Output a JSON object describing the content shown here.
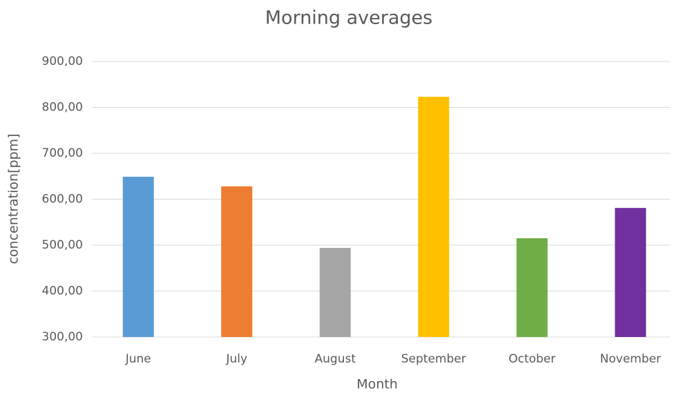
{
  "chart_data": {
    "type": "bar",
    "title": "Morning averages",
    "x_label": "Month",
    "y_label": "concentration[ppm]",
    "categories": [
      "June",
      "July",
      "August",
      "September",
      "October",
      "November"
    ],
    "values": [
      649,
      628,
      494,
      823,
      515,
      581
    ],
    "colors": [
      "#5b9bd5",
      "#ed7d31",
      "#a5a5a5",
      "#ffc000",
      "#70ad47",
      "#7030a0"
    ],
    "ylim": [
      300,
      900
    ],
    "yticks": [
      {
        "value": 300,
        "label": "300,00"
      },
      {
        "value": 400,
        "label": "400,00"
      },
      {
        "value": 500,
        "label": "500,00"
      },
      {
        "value": 600,
        "label": "600,00"
      },
      {
        "value": 700,
        "label": "700,00"
      },
      {
        "value": 800,
        "label": "800,00"
      },
      {
        "value": 900,
        "label": "900,00"
      }
    ],
    "grid": true
  }
}
